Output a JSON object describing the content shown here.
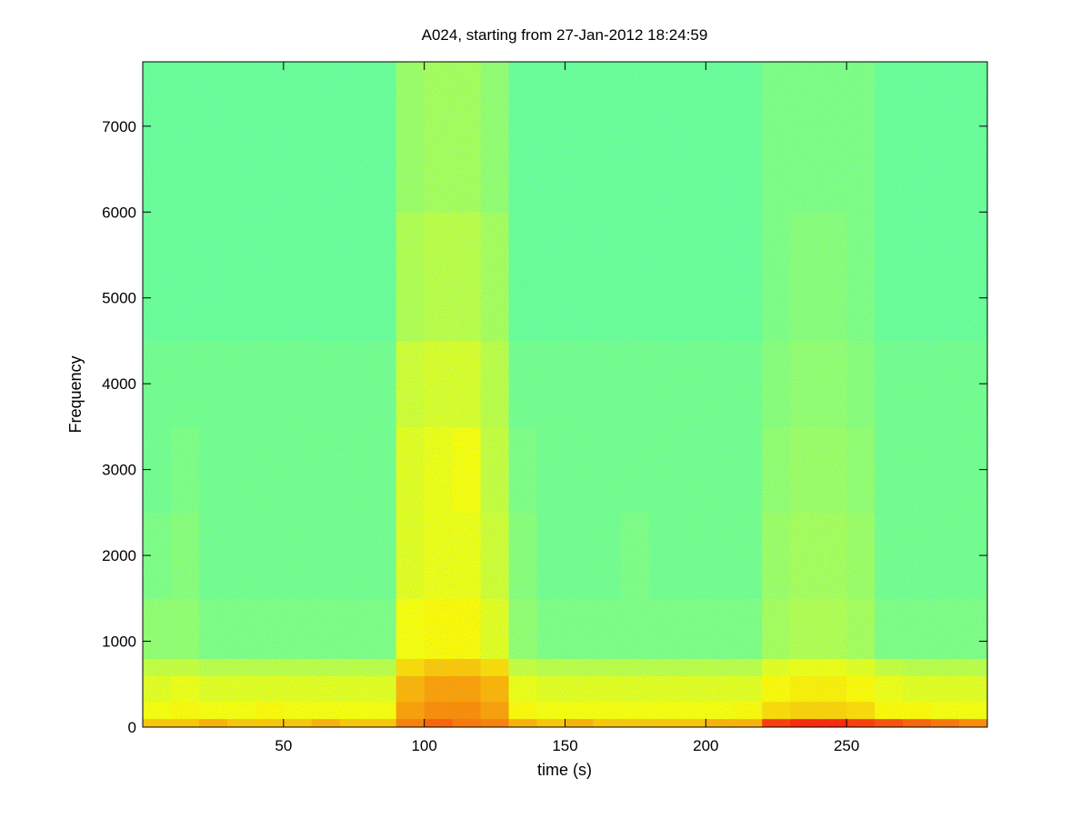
{
  "chart_data": {
    "type": "spectrogram",
    "title": "A024, starting from 27-Jan-2012 18:24:59",
    "xlabel": "time (s)",
    "ylabel": "Frequency",
    "xlim": [
      0,
      300
    ],
    "ylim": [
      0,
      7750
    ],
    "xticks": [
      50,
      100,
      150,
      200,
      250
    ],
    "yticks": [
      0,
      1000,
      2000,
      3000,
      4000,
      5000,
      6000,
      7000
    ],
    "colormap": "jet",
    "clim": [
      0,
      1
    ],
    "x_bins": [
      0,
      10,
      20,
      30,
      40,
      50,
      60,
      70,
      80,
      90,
      100,
      110,
      120,
      130,
      140,
      150,
      160,
      170,
      180,
      190,
      200,
      210,
      220,
      230,
      240,
      250,
      260,
      270,
      280,
      290,
      300
    ],
    "y_bins": [
      0,
      100,
      300,
      600,
      800,
      1500,
      2500,
      3500,
      4500,
      6000,
      7750
    ],
    "values": [
      [
        0.68,
        0.68,
        0.7,
        0.68,
        0.68,
        0.68,
        0.7,
        0.68,
        0.68,
        0.75,
        0.78,
        0.76,
        0.75,
        0.7,
        0.68,
        0.7,
        0.68,
        0.68,
        0.68,
        0.68,
        0.7,
        0.7,
        0.82,
        0.84,
        0.84,
        0.82,
        0.8,
        0.78,
        0.76,
        0.74
      ],
      [
        0.62,
        0.63,
        0.62,
        0.62,
        0.63,
        0.62,
        0.62,
        0.62,
        0.62,
        0.72,
        0.74,
        0.74,
        0.72,
        0.63,
        0.62,
        0.62,
        0.62,
        0.62,
        0.62,
        0.62,
        0.62,
        0.63,
        0.66,
        0.67,
        0.67,
        0.66,
        0.63,
        0.63,
        0.62,
        0.62
      ],
      [
        0.6,
        0.61,
        0.6,
        0.6,
        0.6,
        0.6,
        0.6,
        0.6,
        0.6,
        0.7,
        0.72,
        0.72,
        0.7,
        0.61,
        0.6,
        0.6,
        0.6,
        0.6,
        0.6,
        0.6,
        0.6,
        0.6,
        0.63,
        0.64,
        0.64,
        0.63,
        0.61,
        0.6,
        0.6,
        0.6
      ],
      [
        0.57,
        0.57,
        0.56,
        0.56,
        0.56,
        0.56,
        0.56,
        0.56,
        0.56,
        0.66,
        0.68,
        0.68,
        0.66,
        0.57,
        0.56,
        0.56,
        0.56,
        0.56,
        0.56,
        0.56,
        0.56,
        0.56,
        0.6,
        0.61,
        0.61,
        0.6,
        0.57,
        0.56,
        0.56,
        0.56
      ],
      [
        0.52,
        0.52,
        0.5,
        0.5,
        0.5,
        0.5,
        0.5,
        0.5,
        0.5,
        0.62,
        0.63,
        0.63,
        0.6,
        0.52,
        0.5,
        0.5,
        0.5,
        0.5,
        0.5,
        0.5,
        0.5,
        0.5,
        0.54,
        0.55,
        0.55,
        0.54,
        0.5,
        0.5,
        0.5,
        0.5
      ],
      [
        0.5,
        0.51,
        0.49,
        0.49,
        0.49,
        0.49,
        0.49,
        0.49,
        0.49,
        0.6,
        0.61,
        0.61,
        0.58,
        0.51,
        0.49,
        0.49,
        0.49,
        0.5,
        0.49,
        0.49,
        0.49,
        0.49,
        0.53,
        0.54,
        0.54,
        0.53,
        0.49,
        0.49,
        0.49,
        0.49
      ],
      [
        0.49,
        0.5,
        0.49,
        0.49,
        0.49,
        0.49,
        0.49,
        0.49,
        0.49,
        0.6,
        0.61,
        0.62,
        0.57,
        0.5,
        0.49,
        0.49,
        0.49,
        0.49,
        0.49,
        0.49,
        0.49,
        0.49,
        0.52,
        0.53,
        0.53,
        0.52,
        0.49,
        0.49,
        0.49,
        0.49
      ],
      [
        0.49,
        0.49,
        0.49,
        0.49,
        0.49,
        0.49,
        0.49,
        0.49,
        0.49,
        0.58,
        0.59,
        0.59,
        0.56,
        0.49,
        0.49,
        0.49,
        0.49,
        0.49,
        0.49,
        0.49,
        0.49,
        0.49,
        0.51,
        0.52,
        0.52,
        0.51,
        0.49,
        0.49,
        0.49,
        0.49
      ],
      [
        0.48,
        0.48,
        0.48,
        0.48,
        0.48,
        0.48,
        0.48,
        0.48,
        0.48,
        0.55,
        0.56,
        0.56,
        0.54,
        0.48,
        0.48,
        0.48,
        0.48,
        0.48,
        0.48,
        0.48,
        0.48,
        0.48,
        0.5,
        0.51,
        0.51,
        0.5,
        0.48,
        0.48,
        0.48,
        0.48
      ],
      [
        0.48,
        0.48,
        0.48,
        0.48,
        0.48,
        0.48,
        0.48,
        0.48,
        0.48,
        0.53,
        0.54,
        0.54,
        0.52,
        0.48,
        0.48,
        0.48,
        0.48,
        0.48,
        0.48,
        0.48,
        0.48,
        0.48,
        0.5,
        0.5,
        0.5,
        0.5,
        0.48,
        0.48,
        0.48,
        0.48
      ]
    ]
  }
}
